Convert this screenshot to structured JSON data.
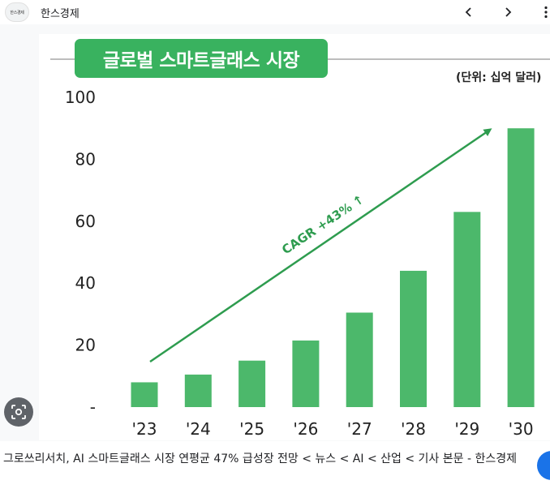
{
  "header": {
    "logo_text": "한스경제",
    "site_name": "한스경제",
    "prev_icon": "chevron-left-icon",
    "next_icon": "chevron-right-icon",
    "more_icon": "more-vert-icon"
  },
  "chart_data": {
    "type": "bar",
    "title": "글로벌 스마트글래스 시장",
    "unit": "(단위: 십억 달러)",
    "categories": [
      "'23",
      "'24",
      "'25",
      "'26",
      "'27",
      "'28",
      "'29",
      "'30"
    ],
    "values": [
      8,
      10.5,
      15,
      21.5,
      30.5,
      44,
      63,
      90
    ],
    "yticks": [
      "-",
      "20",
      "40",
      "60",
      "80",
      "100"
    ],
    "ylim": [
      0,
      100
    ],
    "annotation": "CAGR +43% ↑",
    "color": "#4cb86b"
  },
  "lens_icon": "lens-search-icon",
  "caption": {
    "text": "그로쓰리서치, AI 스마트글래스 시장 연평균 47% 급성장 전망 < 뉴스 < AI < 산업 < 기사 본문 - 한스경제"
  }
}
